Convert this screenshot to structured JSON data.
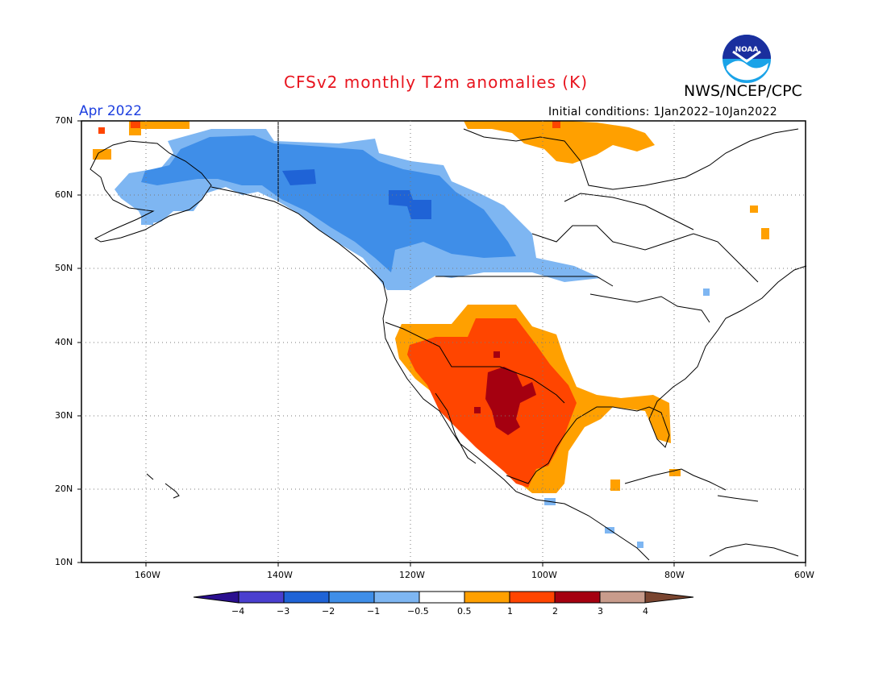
{
  "header": {
    "title": "CFSv2 monthly T2m anomalies (K)",
    "agency": "NWS/NCEP/CPC",
    "logo_text": "NOAA",
    "month": "Apr 2022",
    "initial_conditions": "Initial conditions: 1Jan2022–10Jan2022"
  },
  "map": {
    "lat_labels": [
      "70N",
      "60N",
      "50N",
      "40N",
      "30N",
      "20N",
      "10N"
    ],
    "lon_labels": [
      "160W",
      "140W",
      "120W",
      "100W",
      "80W",
      "60W"
    ],
    "lat_range": [
      10,
      70
    ],
    "lon_range": [
      -172,
      -60
    ],
    "gridlines": true
  },
  "colorbar": {
    "labels": [
      "−4",
      "−3",
      "−2",
      "−1",
      "−0.5",
      "0.5",
      "1",
      "2",
      "3",
      "4"
    ],
    "colors": [
      "#2a0f8f",
      "#4a3fcf",
      "#1f63d6",
      "#3f8ee8",
      "#7eb6f2",
      "#ffffff",
      "#ffa000",
      "#ff4500",
      "#a50010",
      "#c89c8c",
      "#7a4530"
    ]
  }
}
